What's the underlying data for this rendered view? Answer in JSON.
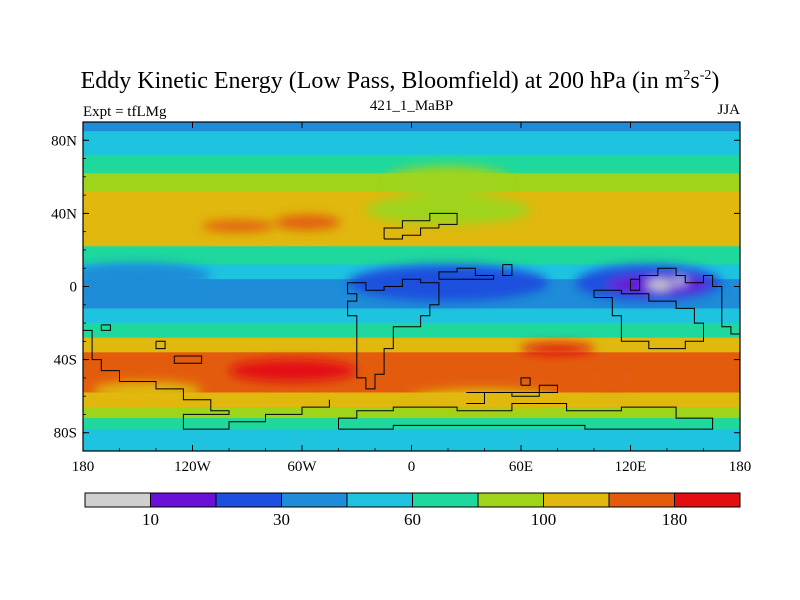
{
  "chart_data": {
    "type": "heatmap",
    "title_main": "Eddy Kinetic Energy (Low Pass, Bloomfield) at 200 hPa (in m",
    "title_sup1": "2",
    "title_mid": "s",
    "title_sup2": "-2",
    "title_end": ")",
    "left_label": "Expt = tfLMg",
    "center_label": "421_1_MaBP",
    "right_label": "JJA",
    "x_ticks": [
      "180",
      "120W",
      "60W",
      "0",
      "60E",
      "120E",
      "180"
    ],
    "x_tick_values": [
      -180,
      -120,
      -60,
      0,
      60,
      120,
      180
    ],
    "y_ticks": [
      "80N",
      "40N",
      "0",
      "40S",
      "80S"
    ],
    "y_tick_values": [
      80,
      40,
      0,
      -40,
      -80
    ],
    "xlim": [
      -180,
      180
    ],
    "ylim": [
      -90,
      90
    ],
    "colorbar_labels": [
      "10",
      "30",
      "60",
      "100",
      "180"
    ],
    "colorbar_colors": [
      "#cfcfcf",
      "#6a10d8",
      "#1f4fde",
      "#1e8cd8",
      "#1ec3e0",
      "#1ed89e",
      "#9ed41a",
      "#e0b80e",
      "#e35c0e",
      "#e30e12"
    ],
    "lat_bands": [
      {
        "lat_top": 90,
        "lat_bottom": 85,
        "level": 3
      },
      {
        "lat_top": 85,
        "lat_bottom": 72,
        "level": 4
      },
      {
        "lat_top": 72,
        "lat_bottom": 62,
        "level": 5
      },
      {
        "lat_top": 62,
        "lat_bottom": 52,
        "level": 6
      },
      {
        "lat_top": 52,
        "lat_bottom": 22,
        "level": 7
      },
      {
        "lat_top": 22,
        "lat_bottom": 12,
        "level": 5
      },
      {
        "lat_top": 12,
        "lat_bottom": 4,
        "level": 4
      },
      {
        "lat_top": 4,
        "lat_bottom": -12,
        "level": 3
      },
      {
        "lat_top": -12,
        "lat_bottom": -20,
        "level": 4
      },
      {
        "lat_top": -20,
        "lat_bottom": -28,
        "level": 5
      },
      {
        "lat_top": -28,
        "lat_bottom": -36,
        "level": 7
      },
      {
        "lat_top": -36,
        "lat_bottom": -58,
        "level": 8
      },
      {
        "lat_top": -58,
        "lat_bottom": -66,
        "level": 7
      },
      {
        "lat_top": -66,
        "lat_bottom": -72,
        "level": 6
      },
      {
        "lat_top": -72,
        "lat_bottom": -78,
        "level": 5
      },
      {
        "lat_top": -78,
        "lat_bottom": -90,
        "level": 4
      }
    ],
    "blobs": [
      {
        "lon": -150,
        "lat": 6,
        "rlon": 40,
        "rlat": 7,
        "level": 3
      },
      {
        "lon": 20,
        "lat": 2,
        "rlon": 55,
        "rlat": 10,
        "level": 2
      },
      {
        "lon": 130,
        "lat": 2,
        "rlon": 40,
        "rlat": 10,
        "level": 2
      },
      {
        "lon": 135,
        "lat": 1,
        "rlon": 28,
        "rlat": 5,
        "level": 1
      },
      {
        "lon": 136,
        "lat": 1,
        "rlon": 7,
        "rlat": 3,
        "level": 0
      },
      {
        "lon": 147,
        "lat": 3,
        "rlon": 4,
        "rlat": 2,
        "level": 0
      },
      {
        "lon": 20,
        "lat": 42,
        "rlon": 45,
        "rlat": 8,
        "level": 6
      },
      {
        "lon": 20,
        "lat": 58,
        "rlon": 35,
        "rlat": 8,
        "level": 6
      },
      {
        "lon": -95,
        "lat": 33,
        "rlon": 20,
        "rlat": 3,
        "level": 8
      },
      {
        "lon": -57,
        "lat": 35,
        "rlon": 18,
        "rlat": 4,
        "level": 8
      },
      {
        "lon": -65,
        "lat": -46,
        "rlon": 35,
        "rlat": 6,
        "level": 9
      },
      {
        "lon": 80,
        "lat": -34,
        "rlon": 20,
        "rlat": 3,
        "level": 9
      },
      {
        "lon": 110,
        "lat": -50,
        "rlon": 13,
        "rlat": 5,
        "level": 8
      },
      {
        "lon": -145,
        "lat": -57,
        "rlon": 30,
        "rlat": 5,
        "level": 7
      },
      {
        "lon": 40,
        "lat": -61,
        "rlon": 40,
        "rlat": 5,
        "level": 7
      }
    ],
    "coastlines": [
      [
        [
          -40,
          -78
        ],
        [
          -40,
          -72
        ],
        [
          -30,
          -72
        ],
        [
          -30,
          -68
        ],
        [
          -10,
          -68
        ],
        [
          -10,
          -66
        ],
        [
          25,
          -66
        ],
        [
          25,
          -68
        ],
        [
          55,
          -68
        ],
        [
          55,
          -64
        ],
        [
          85,
          -64
        ],
        [
          85,
          -68
        ],
        [
          115,
          -68
        ],
        [
          115,
          -66
        ],
        [
          145,
          -66
        ],
        [
          145,
          -72
        ],
        [
          165,
          -72
        ],
        [
          165,
          -78
        ],
        [
          95,
          -78
        ],
        [
          95,
          -76
        ],
        [
          -10,
          -76
        ],
        [
          -10,
          -78
        ],
        [
          -40,
          -78
        ]
      ],
      [
        [
          -180,
          -24
        ],
        [
          -175,
          -24
        ],
        [
          -175,
          -40
        ],
        [
          -170,
          -40
        ],
        [
          -170,
          -46
        ],
        [
          -160,
          -46
        ],
        [
          -160,
          -52
        ],
        [
          -140,
          -52
        ],
        [
          -140,
          -56
        ],
        [
          -125,
          -56
        ],
        [
          -125,
          -62
        ],
        [
          -110,
          -62
        ],
        [
          -110,
          -68
        ],
        [
          -100,
          -68
        ],
        [
          -100,
          -70
        ],
        [
          -125,
          -70
        ],
        [
          -125,
          -78
        ],
        [
          -100,
          -78
        ],
        [
          -100,
          -74
        ],
        [
          -80,
          -74
        ],
        [
          -80,
          -70
        ],
        [
          -60,
          -70
        ],
        [
          -60,
          -66
        ],
        [
          -45,
          -66
        ],
        [
          -45,
          -62
        ]
      ],
      [
        [
          -140,
          -30
        ],
        [
          -135,
          -30
        ],
        [
          -135,
          -34
        ],
        [
          -140,
          -34
        ],
        [
          -140,
          -30
        ]
      ],
      [
        [
          -130,
          -38
        ],
        [
          -115,
          -38
        ],
        [
          -115,
          -42
        ],
        [
          -130,
          -42
        ],
        [
          -130,
          -38
        ]
      ],
      [
        [
          -170,
          -21
        ],
        [
          -165,
          -21
        ],
        [
          -165,
          -24
        ],
        [
          -170,
          -24
        ],
        [
          -170,
          -21
        ]
      ],
      [
        [
          -35,
          0
        ],
        [
          -35,
          -4
        ],
        [
          -30,
          -4
        ],
        [
          -30,
          -8
        ],
        [
          -35,
          -8
        ],
        [
          -35,
          -16
        ],
        [
          -30,
          -16
        ],
        [
          -30,
          -50
        ],
        [
          -25,
          -50
        ],
        [
          -25,
          -56
        ],
        [
          -20,
          -56
        ],
        [
          -20,
          -48
        ],
        [
          -15,
          -48
        ],
        [
          -15,
          -34
        ],
        [
          -10,
          -34
        ],
        [
          -10,
          -22
        ],
        [
          5,
          -22
        ],
        [
          5,
          -16
        ],
        [
          10,
          -16
        ],
        [
          10,
          -10
        ],
        [
          15,
          -10
        ],
        [
          15,
          2
        ],
        [
          5,
          2
        ],
        [
          5,
          4
        ],
        [
          -5,
          4
        ],
        [
          -5,
          0
        ],
        [
          -15,
          0
        ],
        [
          -15,
          -2
        ],
        [
          -25,
          -2
        ],
        [
          -25,
          2
        ],
        [
          -35,
          2
        ],
        [
          -35,
          0
        ]
      ],
      [
        [
          -15,
          26
        ],
        [
          -15,
          32
        ],
        [
          -5,
          32
        ],
        [
          -5,
          36
        ],
        [
          10,
          36
        ],
        [
          10,
          40
        ],
        [
          25,
          40
        ],
        [
          25,
          34
        ],
        [
          15,
          34
        ],
        [
          15,
          32
        ],
        [
          5,
          32
        ],
        [
          5,
          28
        ],
        [
          -5,
          28
        ],
        [
          -5,
          26
        ],
        [
          -15,
          26
        ]
      ],
      [
        [
          15,
          4
        ],
        [
          15,
          8
        ],
        [
          25,
          8
        ],
        [
          25,
          10
        ],
        [
          35,
          10
        ],
        [
          35,
          6
        ],
        [
          45,
          6
        ],
        [
          45,
          4
        ],
        [
          15,
          4
        ]
      ],
      [
        [
          50,
          12
        ],
        [
          55,
          12
        ],
        [
          55,
          6
        ],
        [
          50,
          6
        ],
        [
          50,
          12
        ]
      ],
      [
        [
          30,
          -64
        ],
        [
          40,
          -64
        ],
        [
          40,
          -58
        ],
        [
          55,
          -58
        ],
        [
          55,
          -60
        ],
        [
          70,
          -60
        ],
        [
          70,
          -54
        ],
        [
          80,
          -54
        ],
        [
          80,
          -58
        ],
        [
          30,
          -58
        ]
      ],
      [
        [
          60,
          -54
        ],
        [
          65,
          -54
        ],
        [
          65,
          -50
        ],
        [
          60,
          -50
        ],
        [
          60,
          -54
        ]
      ],
      [
        [
          125,
          2
        ],
        [
          125,
          6
        ],
        [
          135,
          6
        ],
        [
          135,
          10
        ],
        [
          145,
          10
        ],
        [
          145,
          6
        ],
        [
          150,
          6
        ],
        [
          150,
          2
        ],
        [
          160,
          2
        ],
        [
          160,
          6
        ],
        [
          165,
          6
        ],
        [
          165,
          0
        ],
        [
          170,
          0
        ],
        [
          170,
          -22
        ],
        [
          175,
          -22
        ],
        [
          175,
          -26
        ],
        [
          180,
          -26
        ]
      ],
      [
        [
          100,
          -6
        ],
        [
          110,
          -6
        ],
        [
          110,
          -16
        ],
        [
          115,
          -16
        ],
        [
          115,
          -30
        ],
        [
          130,
          -30
        ],
        [
          130,
          -34
        ],
        [
          150,
          -34
        ],
        [
          150,
          -30
        ],
        [
          160,
          -30
        ],
        [
          160,
          -20
        ],
        [
          155,
          -20
        ],
        [
          155,
          -12
        ],
        [
          145,
          -12
        ],
        [
          145,
          -8
        ],
        [
          130,
          -8
        ],
        [
          130,
          -4
        ],
        [
          115,
          -4
        ],
        [
          115,
          -2
        ],
        [
          100,
          -2
        ],
        [
          100,
          -6
        ]
      ],
      [
        [
          125,
          4
        ],
        [
          125,
          -2
        ],
        [
          120,
          -2
        ],
        [
          120,
          4
        ],
        [
          125,
          4
        ]
      ]
    ]
  }
}
